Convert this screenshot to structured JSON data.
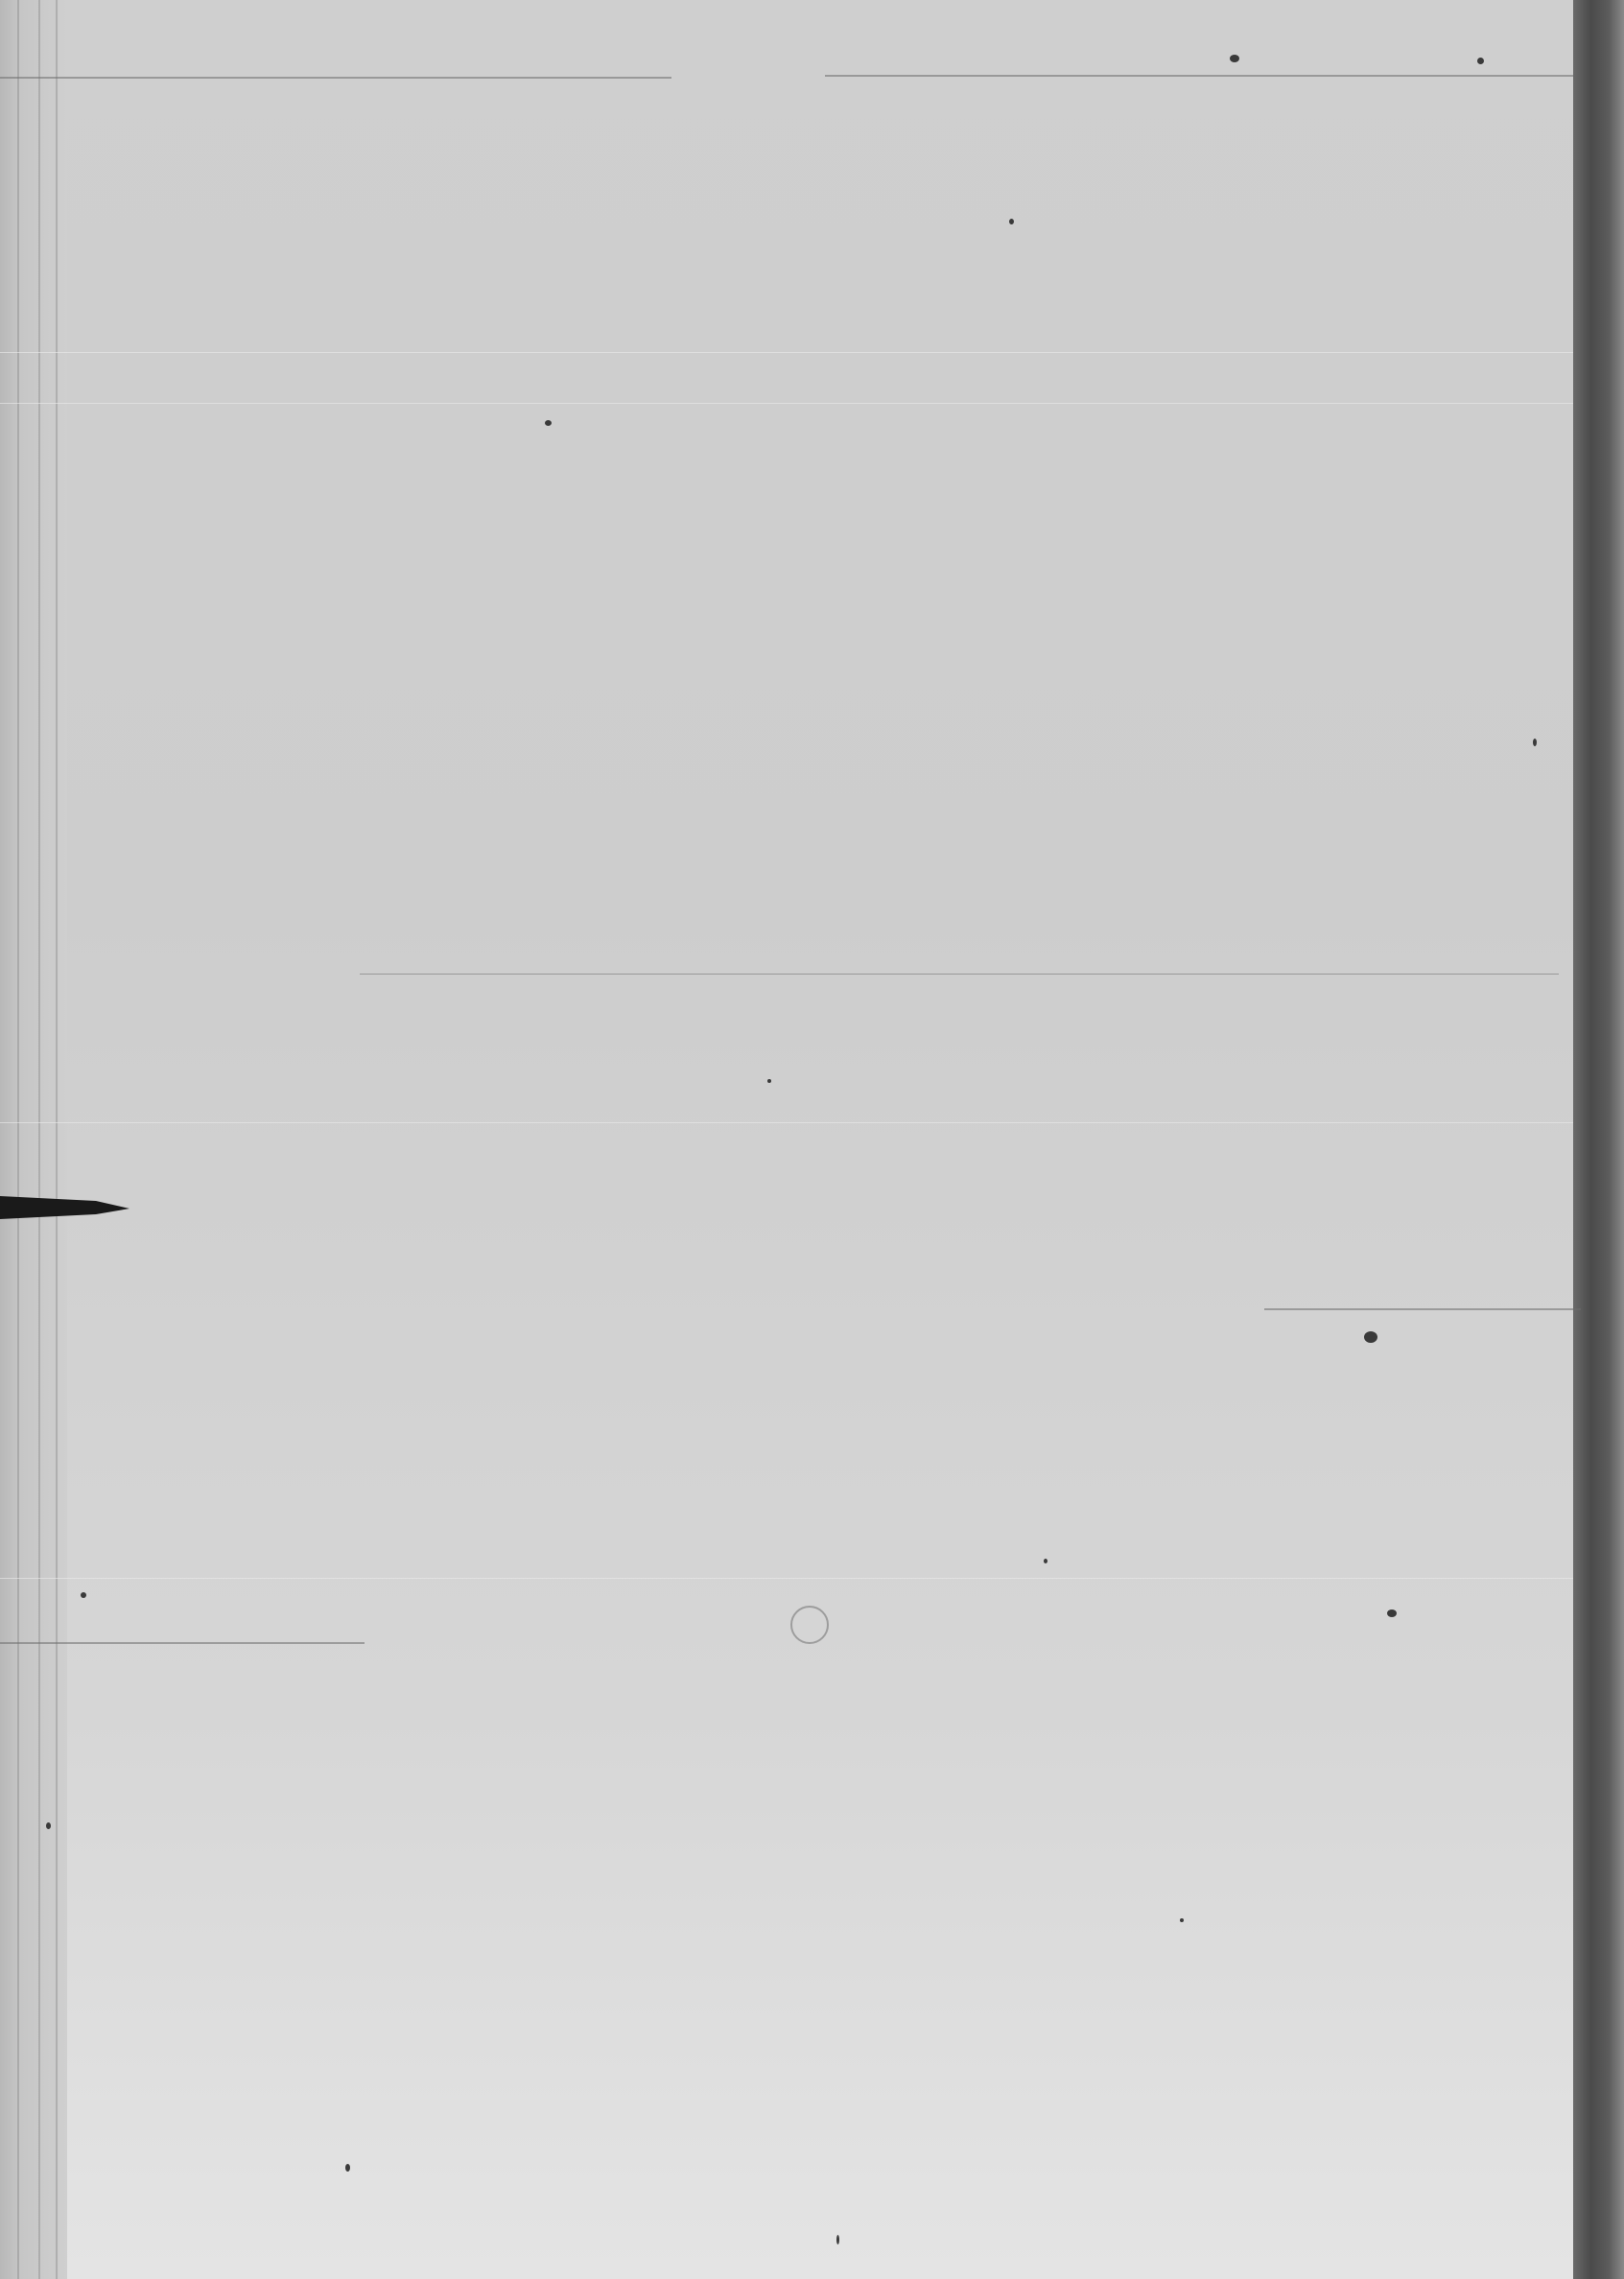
{
  "page": {
    "type": "blank-scanned-page",
    "text": ""
  }
}
